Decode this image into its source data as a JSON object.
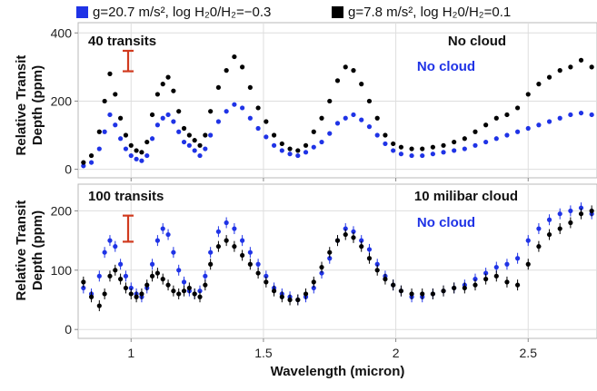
{
  "legend": [
    {
      "name": "g=20.7 m/s², log H₂0/H₂=−0.3",
      "color": "#1f33e6"
    },
    {
      "name": "g=7.8 m/s², log H₂0/H₂=0.1",
      "color": "#000000"
    }
  ],
  "chart_data": [
    {
      "type": "scatter",
      "panel": "top",
      "xlabel": "",
      "ylabel": "Relative Transit Depth (ppm)",
      "xlim": [
        0.8,
        2.76
      ],
      "ylim": [
        -25,
        430
      ],
      "x_ticks": [
        1,
        1.5,
        2,
        2.5
      ],
      "y_ticks": [
        0,
        200,
        400
      ],
      "annotations": [
        "40 transits",
        "No cloud",
        "No cloud"
      ],
      "error_bar_scale_ppm": 30,
      "series": [
        {
          "name": "g=20.7 m/s², log H₂0/H₂=−0.3",
          "color": "#1f33e6",
          "points": [
            [
              0.82,
              10
            ],
            [
              0.85,
              20
            ],
            [
              0.88,
              60
            ],
            [
              0.9,
              110
            ],
            [
              0.92,
              160
            ],
            [
              0.94,
              130
            ],
            [
              0.96,
              90
            ],
            [
              0.98,
              60
            ],
            [
              1.0,
              40
            ],
            [
              1.02,
              30
            ],
            [
              1.04,
              25
            ],
            [
              1.06,
              40
            ],
            [
              1.08,
              90
            ],
            [
              1.1,
              130
            ],
            [
              1.12,
              150
            ],
            [
              1.14,
              160
            ],
            [
              1.16,
              140
            ],
            [
              1.18,
              110
            ],
            [
              1.2,
              80
            ],
            [
              1.22,
              70
            ],
            [
              1.24,
              55
            ],
            [
              1.26,
              40
            ],
            [
              1.28,
              60
            ],
            [
              1.3,
              100
            ],
            [
              1.33,
              140
            ],
            [
              1.36,
              170
            ],
            [
              1.39,
              190
            ],
            [
              1.42,
              180
            ],
            [
              1.45,
              150
            ],
            [
              1.48,
              120
            ],
            [
              1.51,
              95
            ],
            [
              1.54,
              70
            ],
            [
              1.57,
              55
            ],
            [
              1.6,
              45
            ],
            [
              1.63,
              40
            ],
            [
              1.66,
              50
            ],
            [
              1.69,
              65
            ],
            [
              1.72,
              80
            ],
            [
              1.75,
              105
            ],
            [
              1.78,
              135
            ],
            [
              1.81,
              150
            ],
            [
              1.84,
              160
            ],
            [
              1.87,
              145
            ],
            [
              1.9,
              125
            ],
            [
              1.93,
              100
            ],
            [
              1.96,
              75
            ],
            [
              1.99,
              55
            ],
            [
              2.02,
              45
            ],
            [
              2.06,
              40
            ],
            [
              2.1,
              40
            ],
            [
              2.14,
              45
            ],
            [
              2.18,
              50
            ],
            [
              2.22,
              55
            ],
            [
              2.26,
              60
            ],
            [
              2.3,
              70
            ],
            [
              2.34,
              80
            ],
            [
              2.38,
              90
            ],
            [
              2.42,
              100
            ],
            [
              2.46,
              110
            ],
            [
              2.5,
              120
            ],
            [
              2.54,
              130
            ],
            [
              2.58,
              140
            ],
            [
              2.62,
              150
            ],
            [
              2.66,
              160
            ],
            [
              2.7,
              165
            ],
            [
              2.74,
              160
            ]
          ]
        },
        {
          "name": "g=7.8 m/s², log H₂0/H₂=0.1",
          "color": "#000000",
          "points": [
            [
              0.82,
              20
            ],
            [
              0.85,
              40
            ],
            [
              0.88,
              110
            ],
            [
              0.9,
              200
            ],
            [
              0.92,
              280
            ],
            [
              0.94,
              220
            ],
            [
              0.96,
              150
            ],
            [
              0.98,
              100
            ],
            [
              1.0,
              70
            ],
            [
              1.02,
              55
            ],
            [
              1.04,
              50
            ],
            [
              1.06,
              80
            ],
            [
              1.08,
              160
            ],
            [
              1.1,
              220
            ],
            [
              1.12,
              250
            ],
            [
              1.14,
              270
            ],
            [
              1.16,
              230
            ],
            [
              1.18,
              170
            ],
            [
              1.2,
              120
            ],
            [
              1.22,
              100
            ],
            [
              1.24,
              85
            ],
            [
              1.26,
              70
            ],
            [
              1.28,
              100
            ],
            [
              1.3,
              170
            ],
            [
              1.33,
              240
            ],
            [
              1.36,
              290
            ],
            [
              1.39,
              330
            ],
            [
              1.42,
              300
            ],
            [
              1.45,
              240
            ],
            [
              1.48,
              180
            ],
            [
              1.51,
              140
            ],
            [
              1.54,
              100
            ],
            [
              1.57,
              75
            ],
            [
              1.6,
              60
            ],
            [
              1.63,
              55
            ],
            [
              1.66,
              70
            ],
            [
              1.69,
              110
            ],
            [
              1.72,
              150
            ],
            [
              1.75,
              200
            ],
            [
              1.78,
              260
            ],
            [
              1.81,
              300
            ],
            [
              1.84,
              290
            ],
            [
              1.87,
              250
            ],
            [
              1.9,
              200
            ],
            [
              1.93,
              150
            ],
            [
              1.96,
              100
            ],
            [
              1.99,
              75
            ],
            [
              2.02,
              65
            ],
            [
              2.06,
              60
            ],
            [
              2.1,
              60
            ],
            [
              2.14,
              65
            ],
            [
              2.18,
              70
            ],
            [
              2.22,
              80
            ],
            [
              2.26,
              90
            ],
            [
              2.3,
              110
            ],
            [
              2.34,
              130
            ],
            [
              2.38,
              150
            ],
            [
              2.42,
              160
            ],
            [
              2.46,
              180
            ],
            [
              2.5,
              220
            ],
            [
              2.54,
              250
            ],
            [
              2.58,
              270
            ],
            [
              2.62,
              290
            ],
            [
              2.66,
              300
            ],
            [
              2.7,
              320
            ],
            [
              2.74,
              300
            ]
          ]
        }
      ]
    },
    {
      "type": "scatter",
      "panel": "bottom",
      "xlabel": "Wavelength (micron)",
      "ylabel": "Relative Transit Depth (ppm)",
      "xlim": [
        0.8,
        2.76
      ],
      "ylim": [
        -15,
        245
      ],
      "x_ticks": [
        1,
        1.5,
        2,
        2.5
      ],
      "x_tick_labels": [
        "1",
        "1.5",
        "2",
        "2.5"
      ],
      "y_ticks": [
        0,
        100,
        200
      ],
      "annotations": [
        "100 transits",
        "10 milibar cloud",
        "No cloud"
      ],
      "error_bar_scale_ppm": 22,
      "series": [
        {
          "name": "g=20.7 m/s², log H₂0/H₂=−0.3",
          "color": "#1f33e6",
          "points": [
            [
              0.82,
              70
            ],
            [
              0.85,
              60
            ],
            [
              0.88,
              90
            ],
            [
              0.9,
              130
            ],
            [
              0.92,
              150
            ],
            [
              0.94,
              140
            ],
            [
              0.96,
              110
            ],
            [
              0.98,
              90
            ],
            [
              1.0,
              70
            ],
            [
              1.02,
              60
            ],
            [
              1.04,
              55
            ],
            [
              1.06,
              70
            ],
            [
              1.08,
              110
            ],
            [
              1.1,
              150
            ],
            [
              1.12,
              170
            ],
            [
              1.14,
              160
            ],
            [
              1.16,
              130
            ],
            [
              1.18,
              100
            ],
            [
              1.2,
              80
            ],
            [
              1.22,
              65
            ],
            [
              1.24,
              60
            ],
            [
              1.26,
              65
            ],
            [
              1.28,
              90
            ],
            [
              1.3,
              130
            ],
            [
              1.33,
              165
            ],
            [
              1.36,
              180
            ],
            [
              1.39,
              170
            ],
            [
              1.42,
              150
            ],
            [
              1.45,
              130
            ],
            [
              1.48,
              110
            ],
            [
              1.51,
              90
            ],
            [
              1.54,
              70
            ],
            [
              1.57,
              60
            ],
            [
              1.6,
              55
            ],
            [
              1.63,
              50
            ],
            [
              1.66,
              55
            ],
            [
              1.69,
              70
            ],
            [
              1.72,
              95
            ],
            [
              1.75,
              120
            ],
            [
              1.78,
              150
            ],
            [
              1.81,
              170
            ],
            [
              1.84,
              165
            ],
            [
              1.87,
              150
            ],
            [
              1.9,
              135
            ],
            [
              1.93,
              110
            ],
            [
              1.96,
              90
            ],
            [
              1.99,
              75
            ],
            [
              2.02,
              65
            ],
            [
              2.06,
              55
            ],
            [
              2.1,
              55
            ],
            [
              2.14,
              60
            ],
            [
              2.18,
              65
            ],
            [
              2.22,
              70
            ],
            [
              2.26,
              75
            ],
            [
              2.3,
              85
            ],
            [
              2.34,
              95
            ],
            [
              2.38,
              105
            ],
            [
              2.42,
              110
            ],
            [
              2.46,
              120
            ],
            [
              2.5,
              150
            ],
            [
              2.54,
              170
            ],
            [
              2.58,
              185
            ],
            [
              2.62,
              195
            ],
            [
              2.66,
              200
            ],
            [
              2.7,
              205
            ],
            [
              2.74,
              195
            ]
          ]
        },
        {
          "name": "g=7.8 m/s², log H₂0/H₂=0.1",
          "color": "#000000",
          "points": [
            [
              0.82,
              80
            ],
            [
              0.85,
              55
            ],
            [
              0.88,
              40
            ],
            [
              0.9,
              60
            ],
            [
              0.92,
              90
            ],
            [
              0.94,
              100
            ],
            [
              0.96,
              85
            ],
            [
              0.98,
              70
            ],
            [
              1.0,
              60
            ],
            [
              1.02,
              55
            ],
            [
              1.04,
              60
            ],
            [
              1.06,
              75
            ],
            [
              1.08,
              90
            ],
            [
              1.1,
              95
            ],
            [
              1.12,
              85
            ],
            [
              1.14,
              75
            ],
            [
              1.16,
              65
            ],
            [
              1.18,
              60
            ],
            [
              1.2,
              65
            ],
            [
              1.22,
              70
            ],
            [
              1.24,
              60
            ],
            [
              1.26,
              55
            ],
            [
              1.28,
              75
            ],
            [
              1.3,
              110
            ],
            [
              1.33,
              140
            ],
            [
              1.36,
              150
            ],
            [
              1.39,
              140
            ],
            [
              1.42,
              125
            ],
            [
              1.45,
              110
            ],
            [
              1.48,
              95
            ],
            [
              1.51,
              80
            ],
            [
              1.54,
              65
            ],
            [
              1.57,
              55
            ],
            [
              1.6,
              50
            ],
            [
              1.63,
              50
            ],
            [
              1.66,
              60
            ],
            [
              1.69,
              80
            ],
            [
              1.72,
              105
            ],
            [
              1.75,
              130
            ],
            [
              1.78,
              150
            ],
            [
              1.81,
              160
            ],
            [
              1.84,
              155
            ],
            [
              1.87,
              140
            ],
            [
              1.9,
              120
            ],
            [
              1.93,
              100
            ],
            [
              1.96,
              85
            ],
            [
              1.99,
              75
            ],
            [
              2.02,
              65
            ],
            [
              2.06,
              60
            ],
            [
              2.1,
              60
            ],
            [
              2.14,
              60
            ],
            [
              2.18,
              65
            ],
            [
              2.22,
              70
            ],
            [
              2.26,
              70
            ],
            [
              2.3,
              75
            ],
            [
              2.34,
              85
            ],
            [
              2.38,
              90
            ],
            [
              2.42,
              80
            ],
            [
              2.46,
              75
            ],
            [
              2.5,
              110
            ],
            [
              2.54,
              140
            ],
            [
              2.58,
              160
            ],
            [
              2.62,
              170
            ],
            [
              2.66,
              180
            ],
            [
              2.7,
              195
            ],
            [
              2.74,
              200
            ]
          ]
        }
      ]
    }
  ],
  "texts": {
    "x_axis_label": "Wavelength (micron)",
    "top_ylabel_line1": "Relative Transit",
    "top_ylabel_line2": "Depth (ppm)",
    "bot_ylabel_line1": "Relative Transit",
    "bot_ylabel_line2": "Depth (ppm)"
  }
}
